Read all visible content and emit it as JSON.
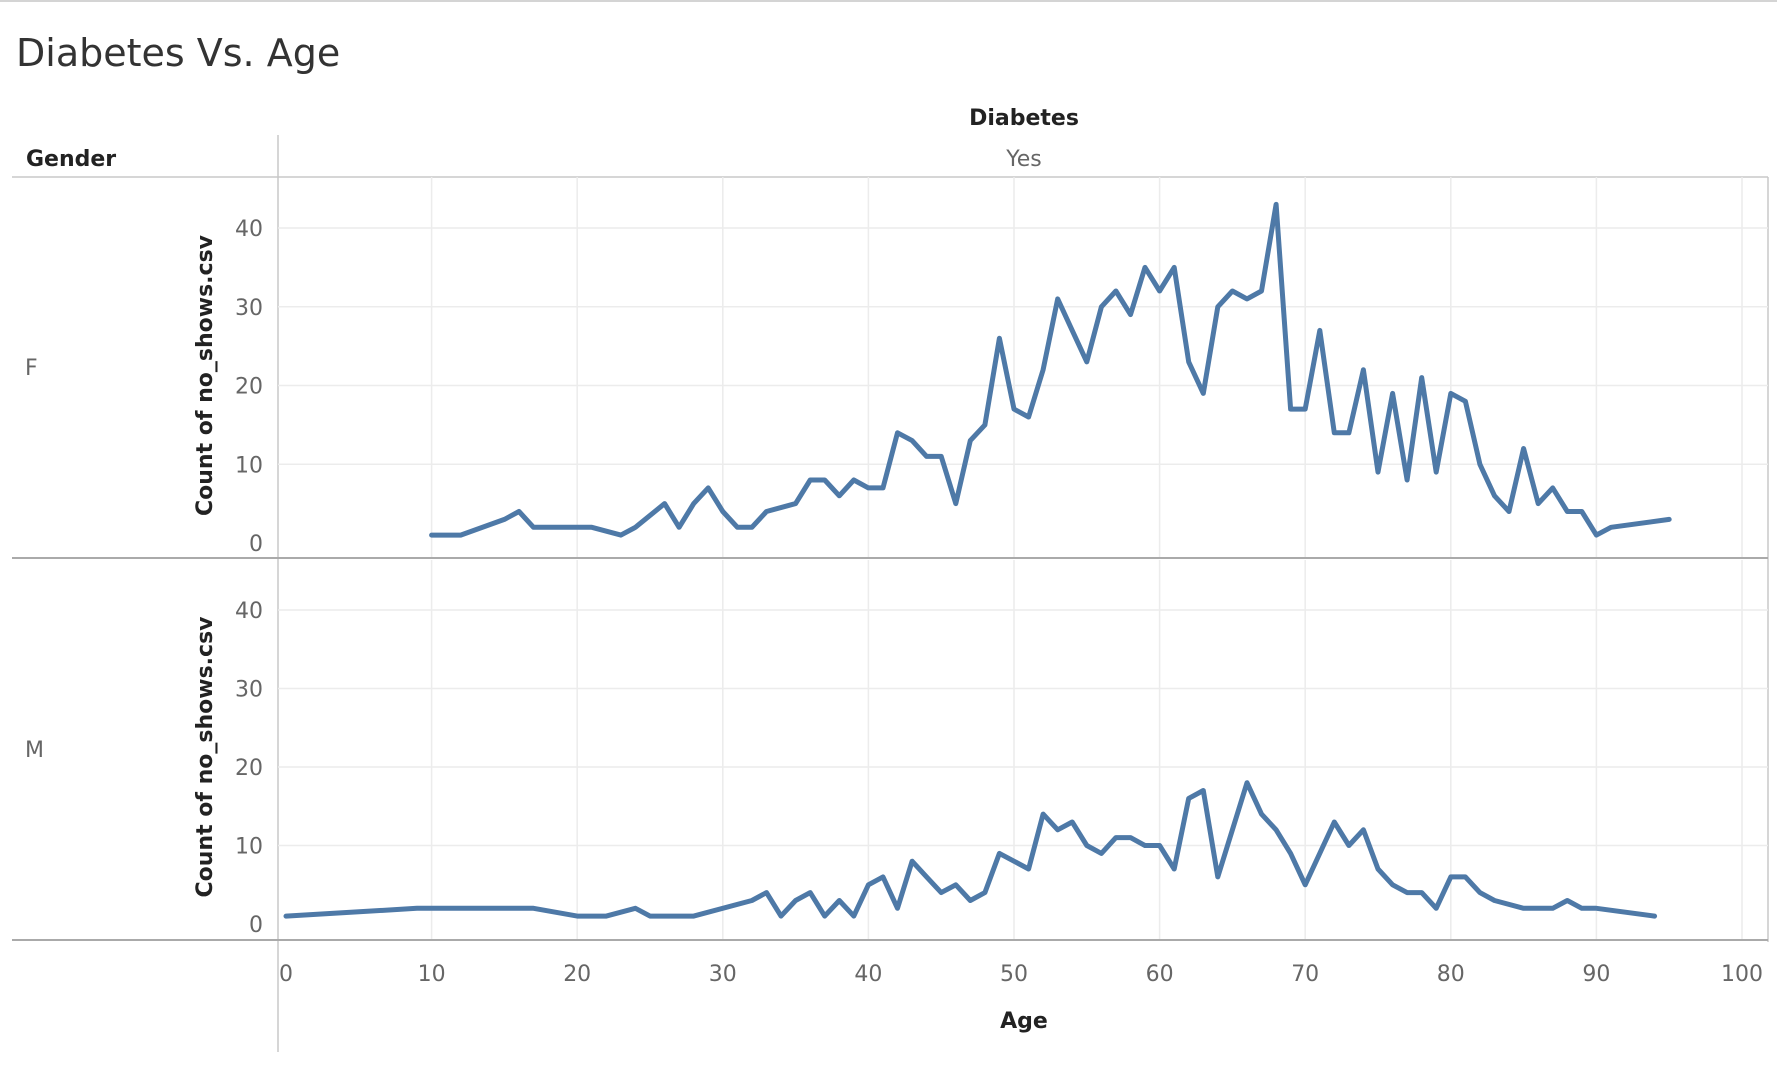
{
  "chart_data": {
    "type": "line",
    "title": "Diabetes Vs. Age",
    "column_field": "Diabetes",
    "column_value": "Yes",
    "row_field": "Gender",
    "xlabel": "Age",
    "ylabel": "Count of no_shows.csv",
    "xlim": [
      0,
      100
    ],
    "ylim": [
      0,
      45
    ],
    "x_ticks": [
      0,
      10,
      20,
      30,
      40,
      50,
      60,
      70,
      80,
      90,
      100
    ],
    "y_ticks": [
      0,
      10,
      20,
      30,
      40
    ],
    "grid": true,
    "series": [
      {
        "name": "F",
        "points": [
          [
            10,
            1
          ],
          [
            12,
            1
          ],
          [
            15,
            3
          ],
          [
            16,
            4
          ],
          [
            17,
            2
          ],
          [
            18,
            2
          ],
          [
            21,
            2
          ],
          [
            23,
            1
          ],
          [
            24,
            2
          ],
          [
            26,
            5
          ],
          [
            27,
            2
          ],
          [
            28,
            5
          ],
          [
            29,
            7
          ],
          [
            30,
            4
          ],
          [
            31,
            2
          ],
          [
            32,
            2
          ],
          [
            33,
            4
          ],
          [
            35,
            5
          ],
          [
            36,
            8
          ],
          [
            37,
            8
          ],
          [
            38,
            6
          ],
          [
            39,
            8
          ],
          [
            40,
            7
          ],
          [
            41,
            7
          ],
          [
            42,
            14
          ],
          [
            43,
            13
          ],
          [
            44,
            11
          ],
          [
            45,
            11
          ],
          [
            46,
            5
          ],
          [
            47,
            13
          ],
          [
            48,
            15
          ],
          [
            49,
            26
          ],
          [
            50,
            17
          ],
          [
            51,
            16
          ],
          [
            52,
            22
          ],
          [
            53,
            31
          ],
          [
            54,
            27
          ],
          [
            55,
            23
          ],
          [
            56,
            30
          ],
          [
            57,
            32
          ],
          [
            58,
            29
          ],
          [
            59,
            35
          ],
          [
            60,
            32
          ],
          [
            61,
            35
          ],
          [
            62,
            23
          ],
          [
            63,
            19
          ],
          [
            64,
            30
          ],
          [
            65,
            32
          ],
          [
            66,
            31
          ],
          [
            67,
            32
          ],
          [
            68,
            43
          ],
          [
            69,
            17
          ],
          [
            70,
            17
          ],
          [
            71,
            27
          ],
          [
            72,
            14
          ],
          [
            73,
            14
          ],
          [
            74,
            22
          ],
          [
            75,
            9
          ],
          [
            76,
            19
          ],
          [
            77,
            8
          ],
          [
            78,
            21
          ],
          [
            79,
            9
          ],
          [
            80,
            19
          ],
          [
            81,
            18
          ],
          [
            82,
            10
          ],
          [
            83,
            6
          ],
          [
            84,
            4
          ],
          [
            85,
            12
          ],
          [
            86,
            5
          ],
          [
            87,
            7
          ],
          [
            88,
            4
          ],
          [
            89,
            4
          ],
          [
            90,
            1
          ],
          [
            91,
            2
          ],
          [
            95,
            3
          ]
        ]
      },
      {
        "name": "M",
        "points": [
          [
            0,
            1
          ],
          [
            9,
            2
          ],
          [
            10,
            2
          ],
          [
            17,
            2
          ],
          [
            20,
            1
          ],
          [
            22,
            1
          ],
          [
            24,
            2
          ],
          [
            25,
            1
          ],
          [
            28,
            1
          ],
          [
            32,
            3
          ],
          [
            33,
            4
          ],
          [
            34,
            1
          ],
          [
            35,
            3
          ],
          [
            36,
            4
          ],
          [
            37,
            1
          ],
          [
            38,
            3
          ],
          [
            39,
            1
          ],
          [
            40,
            5
          ],
          [
            41,
            6
          ],
          [
            42,
            2
          ],
          [
            43,
            8
          ],
          [
            44,
            6
          ],
          [
            45,
            4
          ],
          [
            46,
            5
          ],
          [
            47,
            3
          ],
          [
            48,
            4
          ],
          [
            49,
            9
          ],
          [
            50,
            8
          ],
          [
            51,
            7
          ],
          [
            52,
            14
          ],
          [
            53,
            12
          ],
          [
            54,
            13
          ],
          [
            55,
            10
          ],
          [
            56,
            9
          ],
          [
            57,
            11
          ],
          [
            58,
            11
          ],
          [
            59,
            10
          ],
          [
            60,
            10
          ],
          [
            61,
            7
          ],
          [
            62,
            16
          ],
          [
            63,
            17
          ],
          [
            64,
            6
          ],
          [
            66,
            18
          ],
          [
            67,
            14
          ],
          [
            68,
            12
          ],
          [
            69,
            9
          ],
          [
            70,
            5
          ],
          [
            72,
            13
          ],
          [
            73,
            10
          ],
          [
            74,
            12
          ],
          [
            75,
            7
          ],
          [
            76,
            5
          ],
          [
            77,
            4
          ],
          [
            78,
            4
          ],
          [
            79,
            2
          ],
          [
            80,
            6
          ],
          [
            81,
            6
          ],
          [
            82,
            4
          ],
          [
            83,
            3
          ],
          [
            85,
            2
          ],
          [
            87,
            2
          ],
          [
            88,
            3
          ],
          [
            89,
            2
          ],
          [
            90,
            2
          ],
          [
            94,
            1
          ]
        ]
      }
    ]
  }
}
